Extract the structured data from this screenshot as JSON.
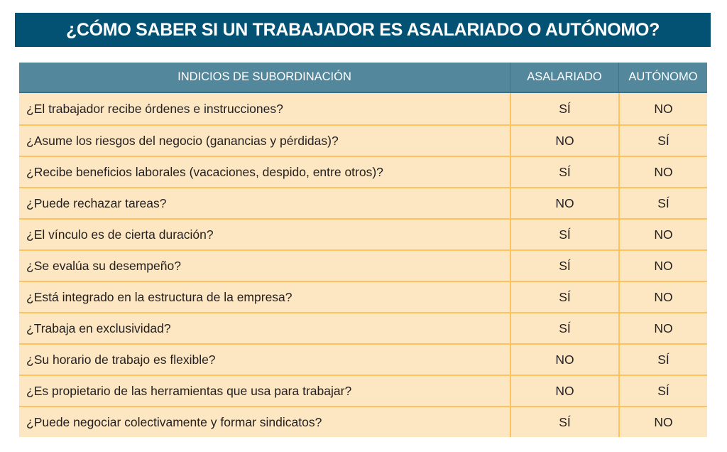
{
  "title": "¿CÓMO SABER SI UN TRABAJADOR ES ASALARIADO O AUTÓNOMO?",
  "table": {
    "headers": [
      "INDICIOS DE SUBORDINACIÓN",
      "ASALARIADO",
      "AUTÓNOMO"
    ],
    "rows": [
      {
        "question": "¿El trabajador recibe órdenes e instrucciones?",
        "asalariado": "SÍ",
        "autonomo": "NO"
      },
      {
        "question": "¿Asume los riesgos del negocio (ganancias y pérdidas)?",
        "asalariado": "NO",
        "autonomo": "SÍ"
      },
      {
        "question": "¿Recibe beneficios laborales (vacaciones, despido, entre otros)?",
        "asalariado": "SÍ",
        "autonomo": "NO"
      },
      {
        "question": "¿Puede rechazar tareas?",
        "asalariado": "NO",
        "autonomo": "SÍ"
      },
      {
        "question": "¿El vínculo es de cierta duración?",
        "asalariado": "SÍ",
        "autonomo": "NO"
      },
      {
        "question": "¿Se evalúa su desempeño?",
        "asalariado": "SÍ",
        "autonomo": "NO"
      },
      {
        "question": "¿Está integrado en la estructura de la empresa?",
        "asalariado": "SÍ",
        "autonomo": "NO"
      },
      {
        "question": "¿Trabaja en exclusividad?",
        "asalariado": "SÍ",
        "autonomo": "NO"
      },
      {
        "question": "¿Su horario de trabajo es flexible?",
        "asalariado": "NO",
        "autonomo": "SÍ"
      },
      {
        "question": "¿Es propietario de las herramientas que usa para trabajar?",
        "asalariado": "NO",
        "autonomo": "SÍ"
      },
      {
        "question": "¿Puede negociar colectivamente y formar sindicatos?",
        "asalariado": "SÍ",
        "autonomo": "NO"
      }
    ]
  },
  "colors": {
    "title_bg": "#045273",
    "header_bg": "#52879c",
    "row_bg": "#fde6c2",
    "row_border": "#fcc35f"
  }
}
